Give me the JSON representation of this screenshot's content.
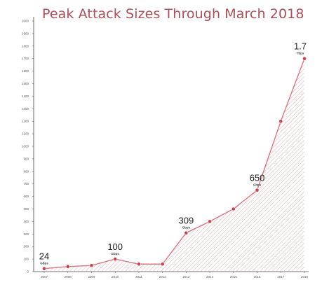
{
  "chart_data": {
    "type": "area",
    "title": "Peak Attack Sizes Through March 2018",
    "x": [
      "2007",
      "2008",
      "2009",
      "2010",
      "2011",
      "2012",
      "2013",
      "2014",
      "2015",
      "2016",
      "2017",
      "2018"
    ],
    "values": [
      24,
      40,
      49,
      100,
      60,
      60,
      309,
      400,
      500,
      650,
      1200,
      1700
    ],
    "ylim": [
      0,
      2000
    ],
    "yticks": [
      "0",
      "100",
      "200",
      "300",
      "400",
      "500",
      "600",
      "700",
      "800",
      "900",
      "1000",
      "1100",
      "1200",
      "1300",
      "1400",
      "1500",
      "1600",
      "1700",
      "1800",
      "1900",
      "2000"
    ],
    "annotations": [
      {
        "x": "2007",
        "value": "24",
        "unit": "Gbps"
      },
      {
        "x": "2010",
        "value": "100",
        "unit": "Gbps"
      },
      {
        "x": "2013",
        "value": "309",
        "unit": "Gbps"
      },
      {
        "x": "2016",
        "value": "650",
        "unit": "Gbps"
      },
      {
        "x": "2018",
        "value": "1.7",
        "unit": "Tbps"
      }
    ],
    "grid": false,
    "line_color": "#d27a80",
    "hatch_color": "#dfa7ab"
  }
}
